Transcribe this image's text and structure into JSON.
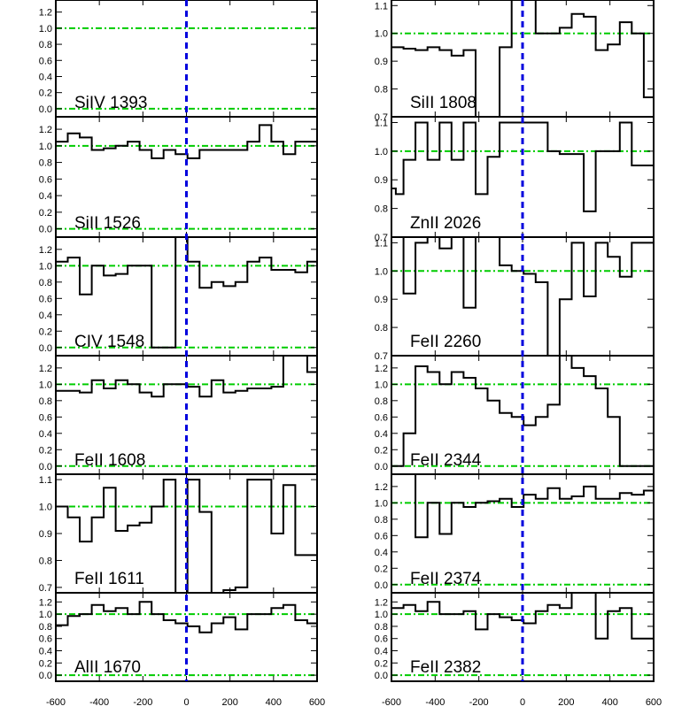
{
  "chart_data": {
    "type": "line",
    "style": {
      "spectrum_color": "#000000",
      "continuum_color": "#00cc00",
      "zero_velocity_color": "#0000dd"
    },
    "x_axis": {
      "range": [
        -600,
        600
      ],
      "ticks": [
        -600,
        -400,
        -200,
        0,
        200,
        400,
        600
      ],
      "tick_labels": [
        "-600",
        "-400",
        "-200",
        "0",
        "200",
        "400",
        "600"
      ]
    },
    "columns": [
      {
        "panels": [
          {
            "label": "SiIV 1393",
            "ylim": [
              -0.1,
              1.35
            ],
            "yticks": [
              0.0,
              0.2,
              0.4,
              0.6,
              0.8,
              1.0,
              1.2
            ],
            "ytick_labels": [
              "0.0",
              "0.2",
              "0.4",
              "0.6",
              "0.8",
              "1.0",
              "1.2"
            ],
            "reference_levels": [
              1.0,
              0.0
            ],
            "x": [],
            "y": []
          },
          {
            "label": "SiII 1526",
            "ylim": [
              -0.1,
              1.35
            ],
            "yticks": [
              0.0,
              0.2,
              0.4,
              0.6,
              0.8,
              1.0,
              1.2
            ],
            "ytick_labels": [
              "0.0",
              "0.2",
              "0.4",
              "0.6",
              "0.8",
              "1.0",
              "1.2"
            ],
            "reference_levels": [
              1.0,
              0.0
            ],
            "x": [
              -600,
              -545,
              -490,
              -435,
              -380,
              -325,
              -270,
              -215,
              -160,
              -105,
              -50,
              5,
              60,
              115,
              170,
              225,
              280,
              335,
              390,
              445,
              500,
              555,
              600
            ],
            "y": [
              1.05,
              1.15,
              1.1,
              0.95,
              0.97,
              1.0,
              1.05,
              0.95,
              0.85,
              0.95,
              0.9,
              0.85,
              0.95,
              0.95,
              0.95,
              0.95,
              1.05,
              1.25,
              1.05,
              0.9,
              1.05,
              1.05,
              1.05
            ]
          },
          {
            "label": "CIV 1548",
            "ylim": [
              -0.1,
              1.35
            ],
            "yticks": [
              0.0,
              0.2,
              0.4,
              0.6,
              0.8,
              1.0,
              1.2
            ],
            "ytick_labels": [
              "0.0",
              "0.2",
              "0.4",
              "0.6",
              "0.8",
              "1.0",
              "1.2"
            ],
            "reference_levels": [
              1.0,
              0.0
            ],
            "x": [
              -600,
              -545,
              -490,
              -435,
              -380,
              -325,
              -270,
              -215,
              -160,
              -105,
              -50,
              5,
              60,
              115,
              170,
              225,
              280,
              335,
              390,
              445,
              500,
              555,
              600
            ],
            "y": [
              1.05,
              1.1,
              0.65,
              1.0,
              0.88,
              0.9,
              1.0,
              1.0,
              0.0,
              0.0,
              1.35,
              1.05,
              0.73,
              0.8,
              0.75,
              0.8,
              1.05,
              1.1,
              0.95,
              0.95,
              0.92,
              1.05,
              1.05
            ]
          },
          {
            "label": "FeII 1608",
            "ylim": [
              -0.1,
              1.35
            ],
            "yticks": [
              0.0,
              0.2,
              0.4,
              0.6,
              0.8,
              1.0,
              1.2
            ],
            "ytick_labels": [
              "0.0",
              "0.2",
              "0.4",
              "0.6",
              "0.8",
              "1.0",
              "1.2"
            ],
            "reference_levels": [
              1.0,
              0.0
            ],
            "x": [
              -600,
              -545,
              -490,
              -435,
              -380,
              -325,
              -270,
              -215,
              -160,
              -105,
              -50,
              5,
              60,
              115,
              170,
              225,
              280,
              335,
              390,
              445,
              500,
              555,
              600
            ],
            "y": [
              0.92,
              0.92,
              0.9,
              1.05,
              0.95,
              1.05,
              1.0,
              0.9,
              0.85,
              1.0,
              1.0,
              0.97,
              0.85,
              1.05,
              0.9,
              0.92,
              0.95,
              0.95,
              0.97,
              1.35,
              1.35,
              1.15,
              1.15
            ]
          },
          {
            "label": "FeII 1611",
            "ylim": [
              0.68,
              1.12
            ],
            "yticks": [
              0.7,
              0.8,
              0.9,
              1.0,
              1.1
            ],
            "ytick_labels": [
              "0.7",
              "0.8",
              "0.9",
              "1.0",
              "1.1"
            ],
            "reference_levels": [
              1.0
            ],
            "x": [
              -600,
              -545,
              -490,
              -435,
              -380,
              -325,
              -270,
              -215,
              -160,
              -105,
              -50,
              5,
              60,
              115,
              170,
              225,
              280,
              335,
              390,
              445,
              500,
              555,
              600
            ],
            "y": [
              1.0,
              0.96,
              0.87,
              0.96,
              1.07,
              0.91,
              0.93,
              0.94,
              1.0,
              1.1,
              0.68,
              1.1,
              0.98,
              0.68,
              0.69,
              0.7,
              1.1,
              1.1,
              0.9,
              1.08,
              0.82,
              0.82,
              0.82
            ]
          },
          {
            "label": "AlII 1670",
            "ylim": [
              -0.1,
              1.35
            ],
            "yticks": [
              0.0,
              0.2,
              0.4,
              0.6,
              0.8,
              1.0,
              1.2
            ],
            "ytick_labels": [
              "0.0",
              "0.2",
              "0.4",
              "0.6",
              "0.8",
              "1.0",
              "1.2"
            ],
            "reference_levels": [
              1.0,
              0.0
            ],
            "x": [
              -600,
              -545,
              -490,
              -435,
              -380,
              -325,
              -270,
              -215,
              -160,
              -105,
              -50,
              5,
              60,
              115,
              170,
              225,
              280,
              335,
              390,
              445,
              500,
              555,
              600
            ],
            "y": [
              0.82,
              0.97,
              1.0,
              1.15,
              1.05,
              1.1,
              1.0,
              1.2,
              1.0,
              0.9,
              0.85,
              0.8,
              0.7,
              0.85,
              0.95,
              0.75,
              1.0,
              1.0,
              1.1,
              1.15,
              0.9,
              0.85,
              0.85
            ]
          }
        ]
      },
      {
        "panels": [
          {
            "label": "SiII 1808",
            "ylim": [
              0.7,
              1.12
            ],
            "yticks": [
              0.7,
              0.8,
              0.9,
              1.0,
              1.1
            ],
            "ytick_labels": [
              "0.7",
              "0.8",
              "0.9",
              "1.0",
              "1.1"
            ],
            "reference_levels": [
              1.0
            ],
            "x": [
              -600,
              -545,
              -490,
              -435,
              -380,
              -325,
              -270,
              -215,
              -160,
              -105,
              -50,
              5,
              60,
              115,
              170,
              225,
              280,
              335,
              390,
              445,
              500,
              555,
              600
            ],
            "y": [
              0.95,
              0.945,
              0.94,
              0.95,
              0.94,
              0.92,
              0.94,
              0.7,
              0.7,
              0.95,
              1.12,
              1.12,
              1.0,
              1.0,
              1.02,
              1.07,
              1.06,
              0.94,
              0.96,
              1.04,
              1.0,
              0.77,
              0.77
            ]
          },
          {
            "label": "ZnII 2026",
            "ylim": [
              0.7,
              1.12
            ],
            "yticks": [
              0.7,
              0.8,
              0.9,
              1.0,
              1.1
            ],
            "ytick_labels": [
              "0.7",
              "0.8",
              "0.9",
              "1.0",
              "1.1"
            ],
            "reference_levels": [
              1.0
            ],
            "x": [
              -600,
              -580,
              -545,
              -490,
              -435,
              -380,
              -325,
              -270,
              -215,
              -160,
              -105,
              -50,
              5,
              60,
              115,
              170,
              225,
              280,
              335,
              390,
              445,
              500,
              555,
              600
            ],
            "y": [
              0.87,
              0.85,
              0.97,
              1.1,
              0.97,
              1.1,
              0.97,
              1.1,
              0.85,
              0.98,
              1.1,
              1.1,
              1.1,
              1.1,
              1.0,
              0.99,
              0.99,
              0.79,
              1.0,
              1.0,
              1.1,
              0.95,
              0.95,
              0.95
            ]
          },
          {
            "label": "FeII 2260",
            "ylim": [
              0.7,
              1.12
            ],
            "yticks": [
              0.7,
              0.8,
              0.9,
              1.0,
              1.1
            ],
            "ytick_labels": [
              "0.7",
              "0.8",
              "0.9",
              "1.0",
              "1.1"
            ],
            "reference_levels": [
              1.0
            ],
            "x": [
              -600,
              -545,
              -490,
              -435,
              -380,
              -325,
              -270,
              -215,
              -160,
              -105,
              -50,
              5,
              60,
              115,
              170,
              225,
              280,
              335,
              390,
              445,
              500,
              555,
              600
            ],
            "y": [
              1.12,
              0.92,
              1.1,
              1.12,
              1.08,
              1.12,
              0.87,
              1.12,
              1.12,
              1.02,
              1.0,
              0.99,
              0.96,
              0.7,
              0.9,
              1.1,
              0.91,
              1.1,
              1.05,
              0.98,
              1.1,
              1.1,
              1.1
            ]
          },
          {
            "label": "FeII 2344",
            "ylim": [
              -0.1,
              1.35
            ],
            "yticks": [
              0.0,
              0.2,
              0.4,
              0.6,
              0.8,
              1.0,
              1.2
            ],
            "ytick_labels": [
              "0.0",
              "0.2",
              "0.4",
              "0.6",
              "0.8",
              "1.0",
              "1.2"
            ],
            "reference_levels": [
              1.0,
              0.0
            ],
            "x": [
              -600,
              -545,
              -490,
              -435,
              -380,
              -325,
              -270,
              -215,
              -160,
              -105,
              -50,
              5,
              60,
              115,
              170,
              225,
              280,
              335,
              390,
              445,
              500,
              555,
              600
            ],
            "y": [
              0.0,
              0.4,
              1.22,
              1.15,
              1.0,
              1.15,
              1.08,
              0.95,
              0.8,
              0.65,
              0.6,
              0.5,
              0.6,
              0.75,
              1.35,
              1.2,
              1.1,
              0.95,
              0.6,
              0.0,
              0.0,
              0.0,
              0.0
            ]
          },
          {
            "label": "FeII 2374",
            "ylim": [
              -0.1,
              1.35
            ],
            "yticks": [
              0.0,
              0.2,
              0.4,
              0.6,
              0.8,
              1.0,
              1.2
            ],
            "ytick_labels": [
              "0.0",
              "0.2",
              "0.4",
              "0.6",
              "0.8",
              "1.0",
              "1.2"
            ],
            "reference_levels": [
              1.0,
              0.0
            ],
            "x": [
              -600,
              -545,
              -490,
              -435,
              -380,
              -325,
              -270,
              -215,
              -160,
              -105,
              -50,
              5,
              60,
              115,
              170,
              225,
              280,
              335,
              390,
              445,
              500,
              555,
              600
            ],
            "y": [
              1.35,
              1.35,
              0.58,
              1.0,
              0.62,
              1.0,
              0.95,
              1.0,
              1.02,
              1.05,
              0.95,
              1.1,
              1.05,
              1.18,
              1.05,
              1.08,
              1.2,
              1.05,
              1.05,
              1.12,
              1.1,
              1.15,
              1.15
            ]
          },
          {
            "label": "FeII 2382",
            "ylim": [
              -0.1,
              1.35
            ],
            "yticks": [
              0.0,
              0.2,
              0.4,
              0.6,
              0.8,
              1.0,
              1.2
            ],
            "ytick_labels": [
              "0.0",
              "0.2",
              "0.4",
              "0.6",
              "0.8",
              "1.0",
              "1.2"
            ],
            "reference_levels": [
              1.0,
              0.0
            ],
            "x": [
              -600,
              -545,
              -490,
              -435,
              -380,
              -325,
              -270,
              -215,
              -160,
              -105,
              -50,
              5,
              60,
              115,
              170,
              225,
              280,
              335,
              390,
              445,
              500,
              555,
              600
            ],
            "y": [
              1.1,
              1.15,
              1.05,
              1.2,
              1.0,
              1.0,
              1.05,
              0.75,
              1.0,
              0.95,
              0.9,
              0.85,
              1.05,
              1.15,
              1.1,
              1.35,
              1.35,
              0.6,
              1.05,
              1.1,
              0.6,
              0.6,
              0.6
            ]
          }
        ]
      }
    ]
  }
}
